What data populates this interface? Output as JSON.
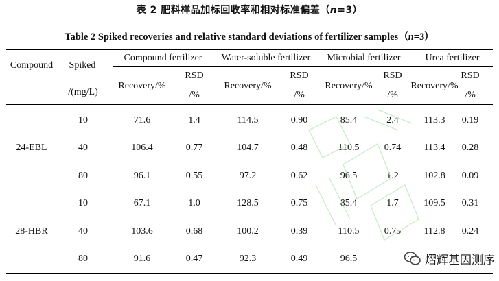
{
  "title_cn": {
    "prefix": "表 2  肥料样品加标回收率和相对标准偏差（",
    "n": "n",
    "suffix": "=3）"
  },
  "title_en": {
    "prefix": "Table 2   Spiked recoveries and relative standard deviations of fertilizer samples（",
    "n": "n",
    "suffix": "=3）"
  },
  "header": {
    "compound": "Compound",
    "spiked_line1": "Spiked",
    "spiked_line2": "/(mg/L)",
    "groups": [
      "Compound fertilizer",
      "Water-soluble fertilizer",
      "Microbial fertilizer",
      "Urea fertilizer"
    ],
    "recovery": "Recovery/%",
    "rsd_line1": "RSD",
    "rsd_line2": "/%"
  },
  "compounds": [
    "24-EBL",
    "28-HBR"
  ],
  "rows": [
    [
      "10",
      "71.6",
      "1.4",
      "114.5",
      "0.90",
      "85.4",
      "2.4",
      "113.3",
      "0.19"
    ],
    [
      "40",
      "106.4",
      "0.77",
      "104.7",
      "0.48",
      "110.5",
      "0.74",
      "113.4",
      "0.28"
    ],
    [
      "80",
      "96.1",
      "0.55",
      "97.2",
      "0.62",
      "96.5",
      "1.2",
      "102.8",
      "0.09"
    ],
    [
      "10",
      "67.1",
      "1.0",
      "128.5",
      "0.75",
      "85.4",
      "1.7",
      "109.5",
      "0.31"
    ],
    [
      "40",
      "103.6",
      "0.68",
      "100.2",
      "0.39",
      "110.5",
      "0.75",
      "112.8",
      "0.24"
    ],
    [
      "80",
      "91.6",
      "0.47",
      "92.3",
      "0.49",
      "96.5",
      "",
      "",
      ""
    ]
  ],
  "wechat_label": "熠辉基因测序"
}
